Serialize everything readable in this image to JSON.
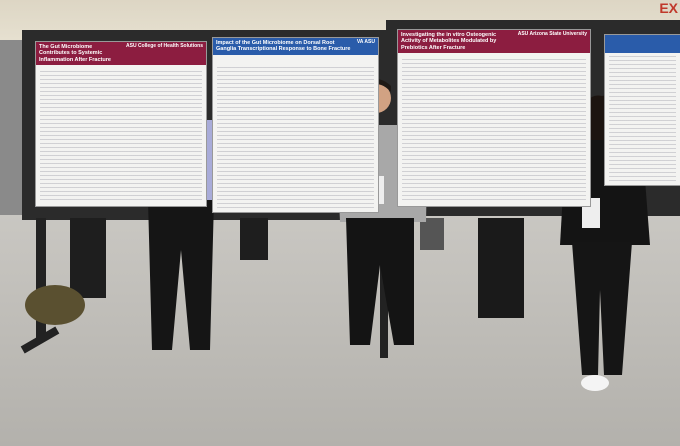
{
  "sign": "EX",
  "posters": [
    {
      "title": "The Gut Microbiome Contributes to Systemic Inflammation After Fracture",
      "logo": "ASU College of Health Solutions"
    },
    {
      "title": "Impact of the Gut Microbiome on Dorsal Root Ganglia Transcriptional Response to Bone Fracture",
      "logo": "VA  ASU"
    },
    {
      "title": "Investigating the in vitro Osteogenic Activity of Metabolites Modulated by Prebiotics After Fracture",
      "logo": "ASU Arizona State University"
    }
  ]
}
